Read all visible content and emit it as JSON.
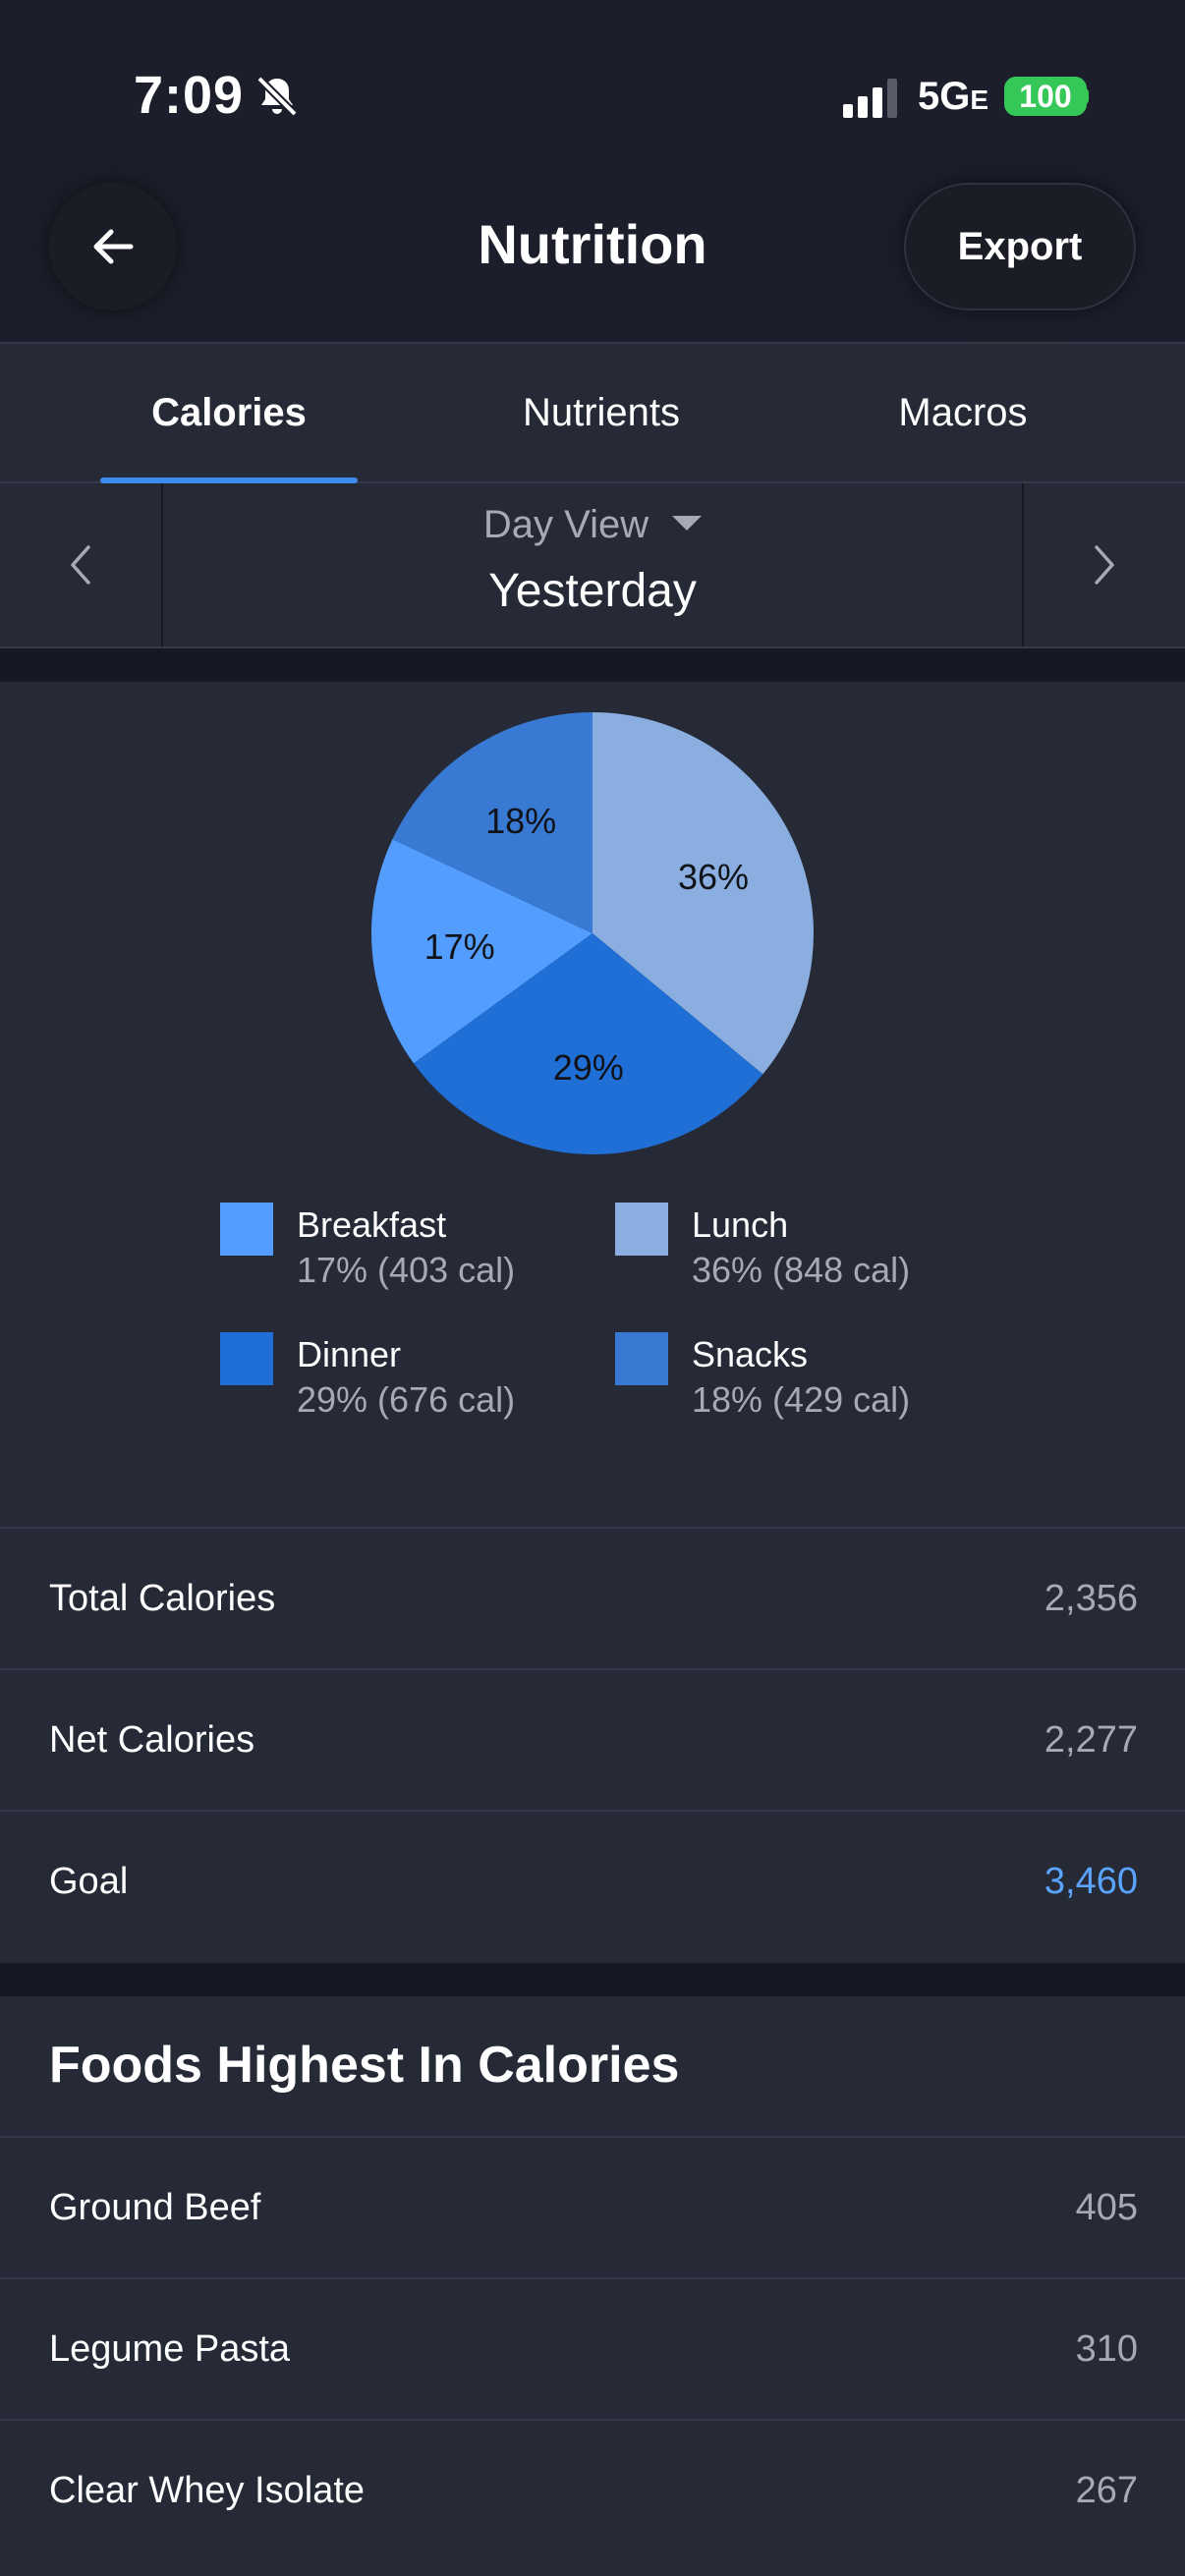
{
  "status_bar": {
    "time": "7:09",
    "network": "5G",
    "network_suffix": "E",
    "battery": "100"
  },
  "header": {
    "title": "Nutrition",
    "export_label": "Export"
  },
  "tabs": [
    {
      "label": "Calories",
      "active": true
    },
    {
      "label": "Nutrients",
      "active": false
    },
    {
      "label": "Macros",
      "active": false
    }
  ],
  "day_selector": {
    "view_label": "Day View",
    "date_label": "Yesterday"
  },
  "chart_data": {
    "type": "pie",
    "slices": [
      {
        "name": "Lunch",
        "percent": 36,
        "calories": 848,
        "color": "#8aaedf",
        "label": "36%"
      },
      {
        "name": "Dinner",
        "percent": 29,
        "calories": 676,
        "color": "#1f6fd6",
        "label": "29%"
      },
      {
        "name": "Breakfast",
        "percent": 17,
        "calories": 403,
        "color": "#539dff",
        "label": "17%"
      },
      {
        "name": "Snacks",
        "percent": 18,
        "calories": 429,
        "color": "#3879d3",
        "label": "18%"
      }
    ]
  },
  "legend": [
    {
      "name": "Breakfast",
      "value": "17% (403 cal)",
      "color": "#539dff"
    },
    {
      "name": "Lunch",
      "value": "36% (848 cal)",
      "color": "#8aaedf"
    },
    {
      "name": "Dinner",
      "value": "29% (676 cal)",
      "color": "#1f6fd6"
    },
    {
      "name": "Snacks",
      "value": "18% (429 cal)",
      "color": "#3879d3"
    }
  ],
  "summary": [
    {
      "label": "Total Calories",
      "value": "2,356"
    },
    {
      "label": "Net Calories",
      "value": "2,277"
    },
    {
      "label": "Goal",
      "value": "3,460"
    }
  ],
  "foods": {
    "title": "Foods Highest In Calories",
    "items": [
      {
        "name": "Ground Beef",
        "calories": "405"
      },
      {
        "name": "Legume Pasta",
        "calories": "310"
      },
      {
        "name": "Clear Whey Isolate",
        "calories": "267"
      }
    ]
  },
  "icons": {
    "back": "arrow-left-icon",
    "mute": "bell-slash-icon",
    "signal": "signal-bars-icon",
    "prev": "chevron-left-icon",
    "next": "chevron-right-icon",
    "dropdown": "caret-down-icon"
  }
}
